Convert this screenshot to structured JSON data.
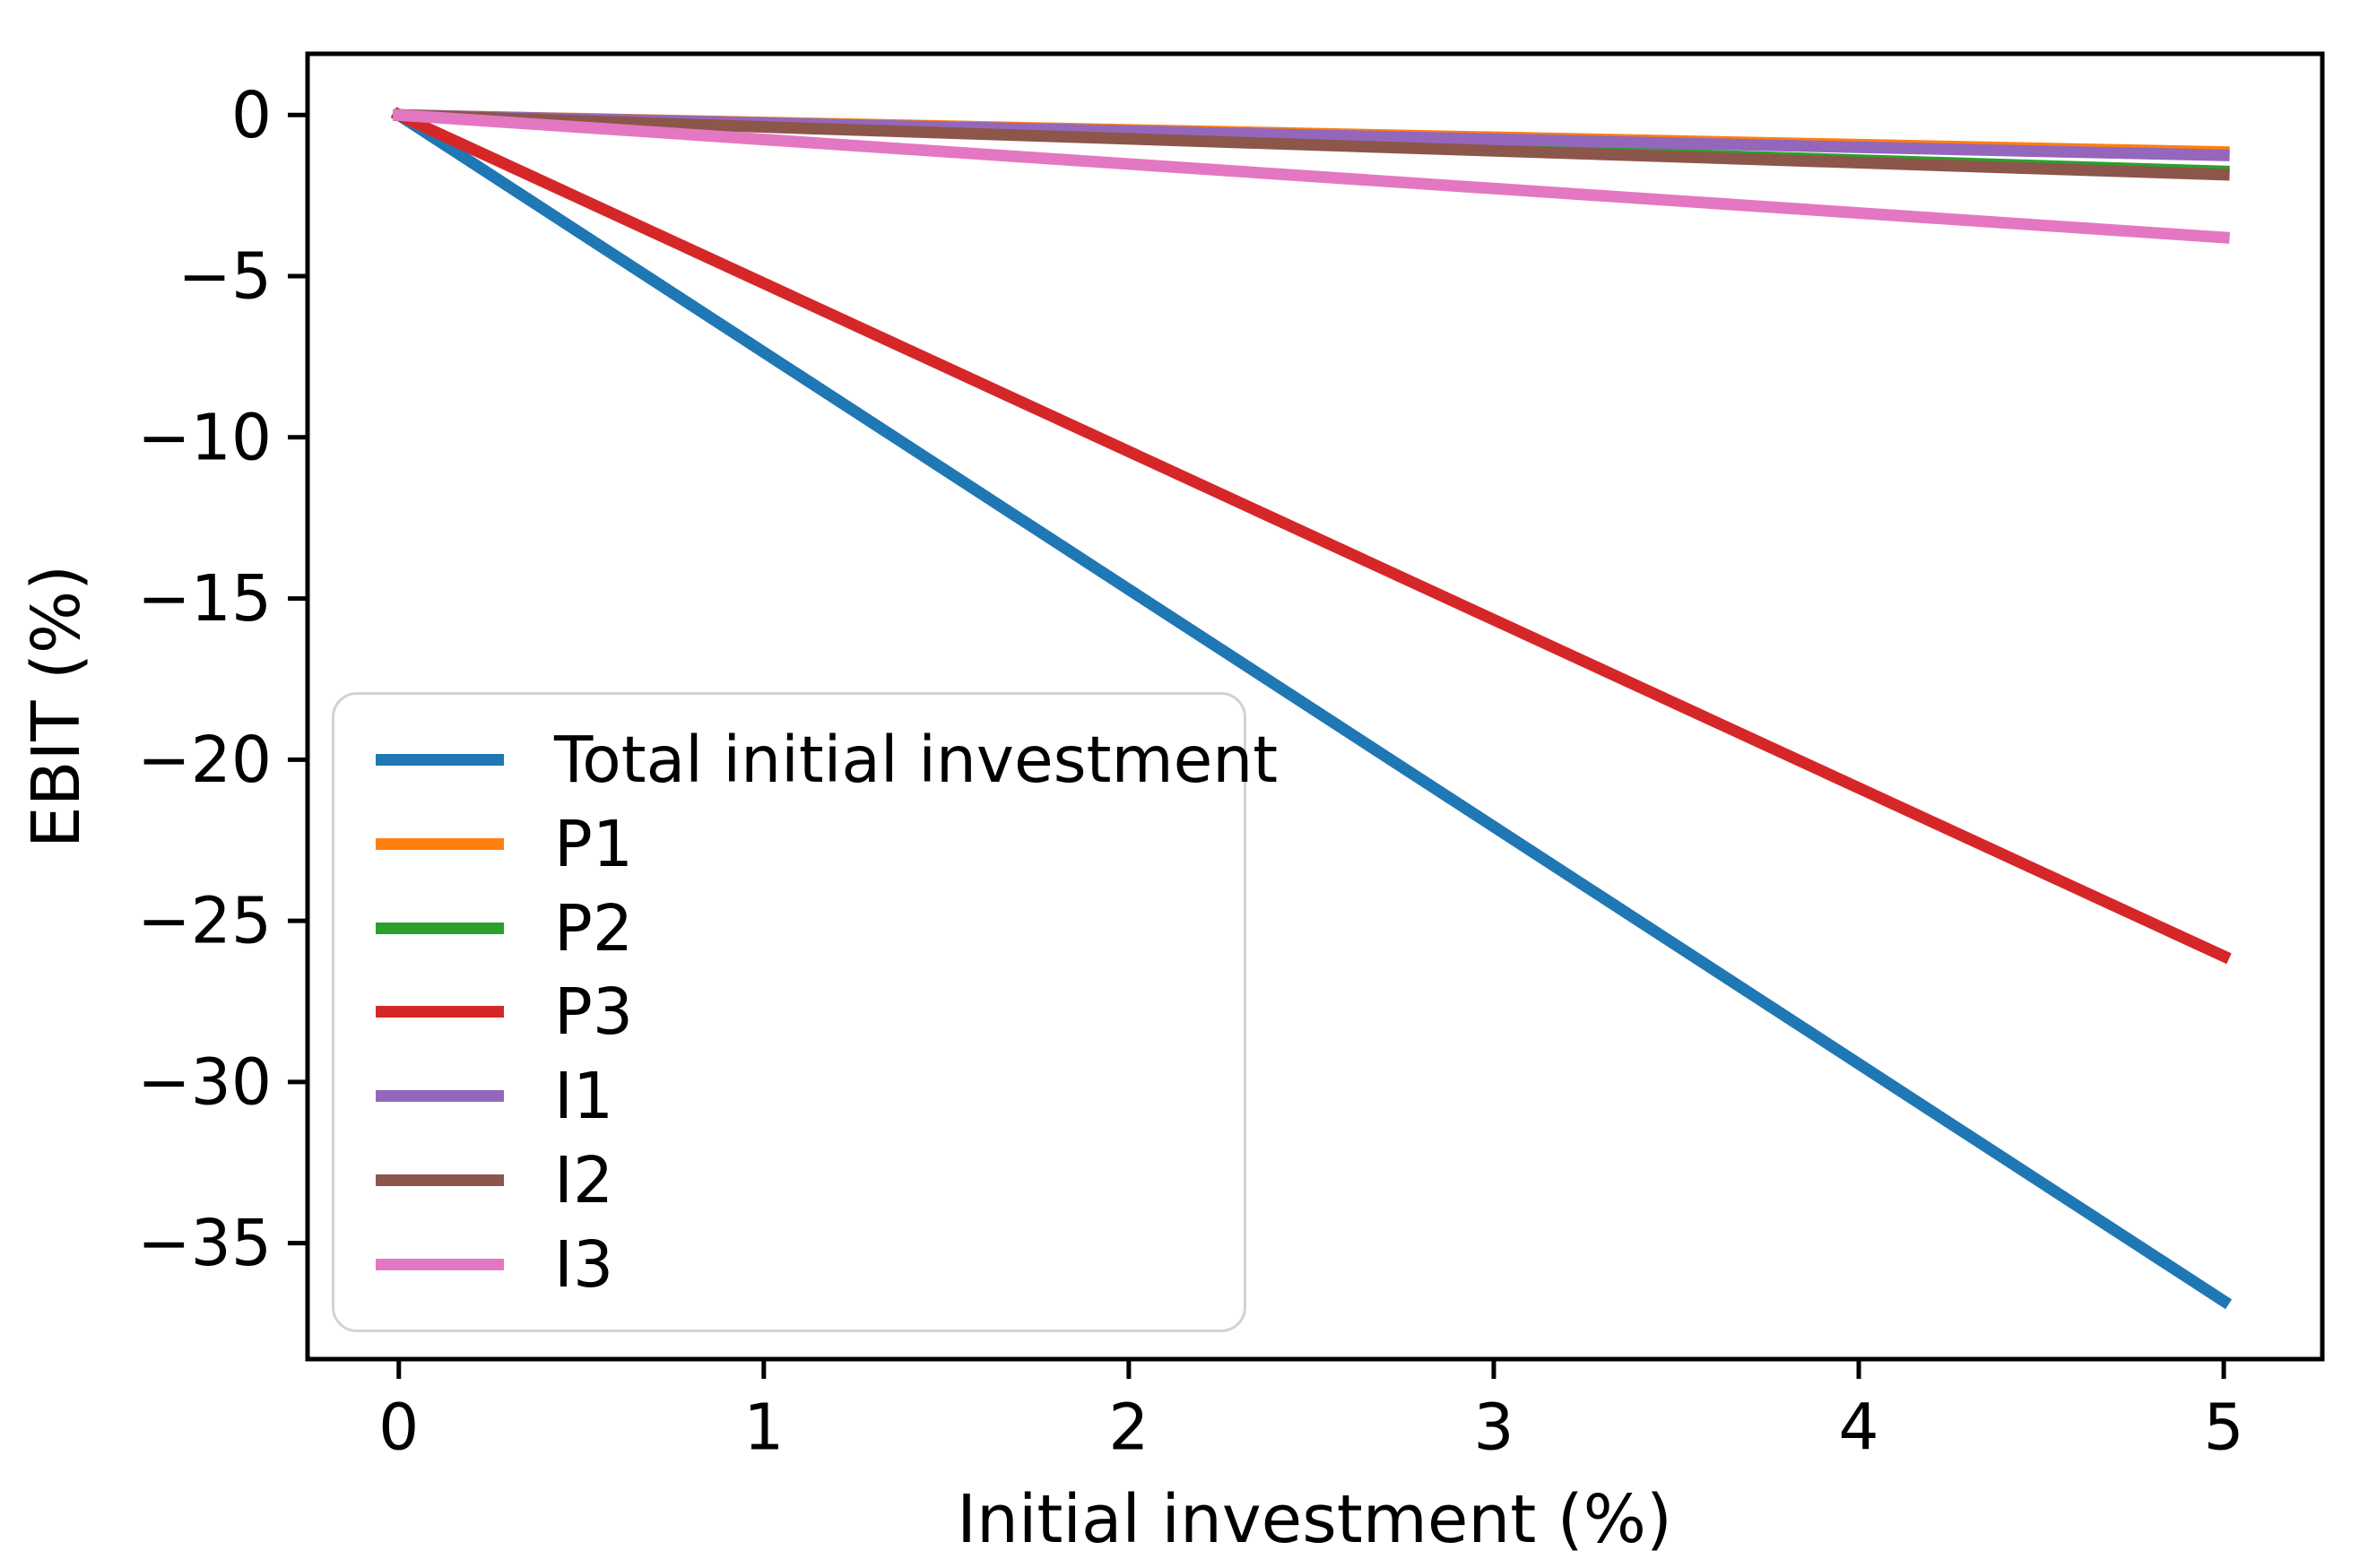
{
  "chart_data": {
    "type": "line",
    "title": "",
    "xlabel": "Initial investment (%)",
    "ylabel": "EBIT (%)",
    "xlim": [
      -0.25,
      5.27
    ],
    "ylim": [
      -38.6,
      1.9
    ],
    "grid": false,
    "legend_position": "lower left",
    "x_ticks": [
      0,
      1,
      2,
      3,
      4,
      5
    ],
    "x_tick_labels": [
      "0",
      "1",
      "2",
      "3",
      "4",
      "5"
    ],
    "y_ticks": [
      0,
      -5,
      -10,
      -15,
      -20,
      -25,
      -30,
      -35
    ],
    "y_tick_labels": [
      "0",
      "−5",
      "−10",
      "−15",
      "−20",
      "−25",
      "−30",
      "−35"
    ],
    "x": [
      0,
      5
    ],
    "series": [
      {
        "name": "Total initial investment",
        "color": "#1f77b4",
        "values": [
          0,
          -36.8
        ]
      },
      {
        "name": "P1",
        "color": "#ff7f0e",
        "values": [
          0,
          -1.15
        ]
      },
      {
        "name": "P2",
        "color": "#2ca02c",
        "values": [
          0,
          -1.75
        ]
      },
      {
        "name": "P3",
        "color": "#d62728",
        "values": [
          0,
          -26.1
        ]
      },
      {
        "name": "I1",
        "color": "#9467bd",
        "values": [
          0,
          -1.25
        ]
      },
      {
        "name": "I2",
        "color": "#8c564b",
        "values": [
          0,
          -1.85
        ]
      },
      {
        "name": "I3",
        "color": "#e377c2",
        "values": [
          0,
          -3.8
        ]
      }
    ],
    "axis_color": "#000000"
  }
}
